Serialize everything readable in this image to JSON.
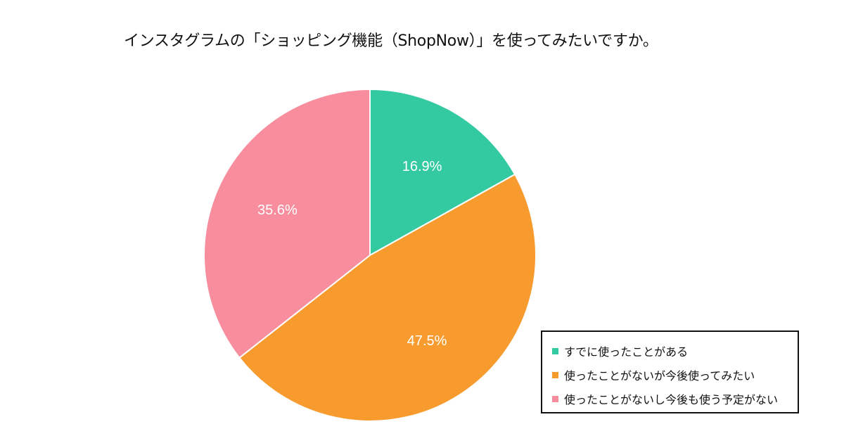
{
  "chart_data": {
    "type": "pie",
    "title": "インスタグラムの「ショッピング機能（ShopNow）」を使ってみたいですか。",
    "slices": [
      {
        "label": "すでに使ったことがある",
        "value": 16.9,
        "display": "16.9%",
        "color": "#33c9a1"
      },
      {
        "label": "使ったことがないが今後使ってみたい",
        "value": 47.5,
        "display": "47.5%",
        "color": "#f89b2e"
      },
      {
        "label": "使ったことがないし今後も使う予定がない",
        "value": 35.6,
        "display": "35.6%",
        "color": "#f88d9e"
      }
    ],
    "start": "12 o'clock",
    "direction": "clockwise",
    "legend_position": "bottom-right"
  }
}
